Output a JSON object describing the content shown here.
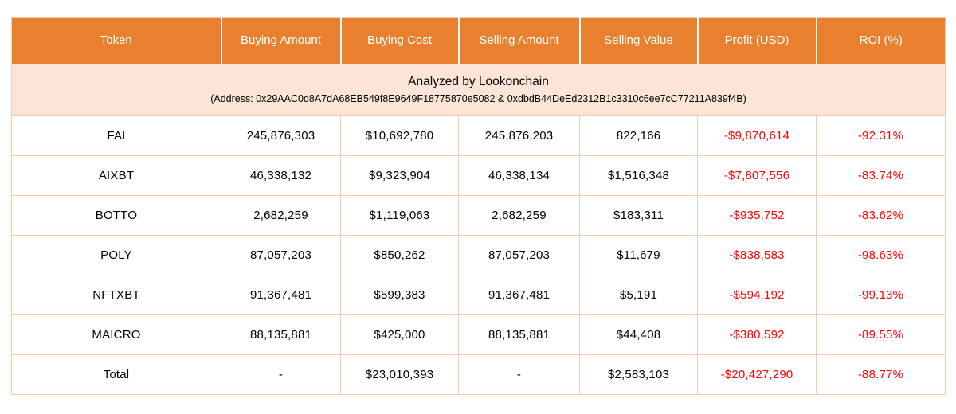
{
  "chart_data": {
    "type": "table",
    "title": "Analyzed by Lookonchain",
    "columns": [
      "Token",
      "Buying Amount",
      "Buying Cost",
      "Selling Amount",
      "Selling Value",
      "Profit (USD)",
      "ROI (%)"
    ],
    "analyzed_by": "Analyzed by Lookonchain",
    "address_line": "(Address: 0x29AAC0d8A7dA68EB549f8E9649F18775870e5082 & 0xdbdB44DeEd2312B1c3310c6ee7cC77211A839f4B)",
    "rows": [
      {
        "is_total": false,
        "cells": [
          "FAI",
          "245,876,303",
          "$10,692,780",
          "245,876,203",
          "822,166",
          "-$9,870,614",
          "-92.31%"
        ]
      },
      {
        "is_total": false,
        "cells": [
          "AIXBT",
          "46,338,132",
          "$9,323,904",
          "46,338,134",
          "$1,516,348",
          "-$7,807,556",
          "-83.74%"
        ]
      },
      {
        "is_total": false,
        "cells": [
          "BOTTO",
          "2,682,259",
          "$1,119,063",
          "2,682,259",
          "$183,311",
          "-$935,752",
          "-83.62%"
        ]
      },
      {
        "is_total": false,
        "cells": [
          "POLY",
          "87,057,203",
          "$850,262",
          "87,057,203",
          "$11,679",
          "-$838,583",
          "-98.63%"
        ]
      },
      {
        "is_total": false,
        "cells": [
          "NFTXBT",
          "91,367,481",
          "$599,383",
          "91,367,481",
          "$5,191",
          "-$594,192",
          "-99.13%"
        ]
      },
      {
        "is_total": false,
        "cells": [
          "MAICRO",
          "88,135,881",
          "$425,000",
          "88,135,881",
          "$44,408",
          "-$380,592",
          "-89.55%"
        ]
      },
      {
        "is_total": true,
        "cells": [
          "Total",
          "-",
          "$23,010,393",
          "-",
          "$2,583,103",
          "-$20,427,290",
          "-88.77%"
        ]
      }
    ],
    "red_column_indexes": [
      5,
      6
    ],
    "layout": "grid table, 7 columns, header + analyzed band + 6 token rows + total row"
  },
  "colors": {
    "header_bg": "#E8802F",
    "header_text": "#FFFFFF",
    "subheader_bg": "#FCE4D6",
    "border": "#F8CBAD",
    "negative": "#FF0000",
    "body_text": "#000000",
    "page_bg": "#FFFFFF"
  }
}
